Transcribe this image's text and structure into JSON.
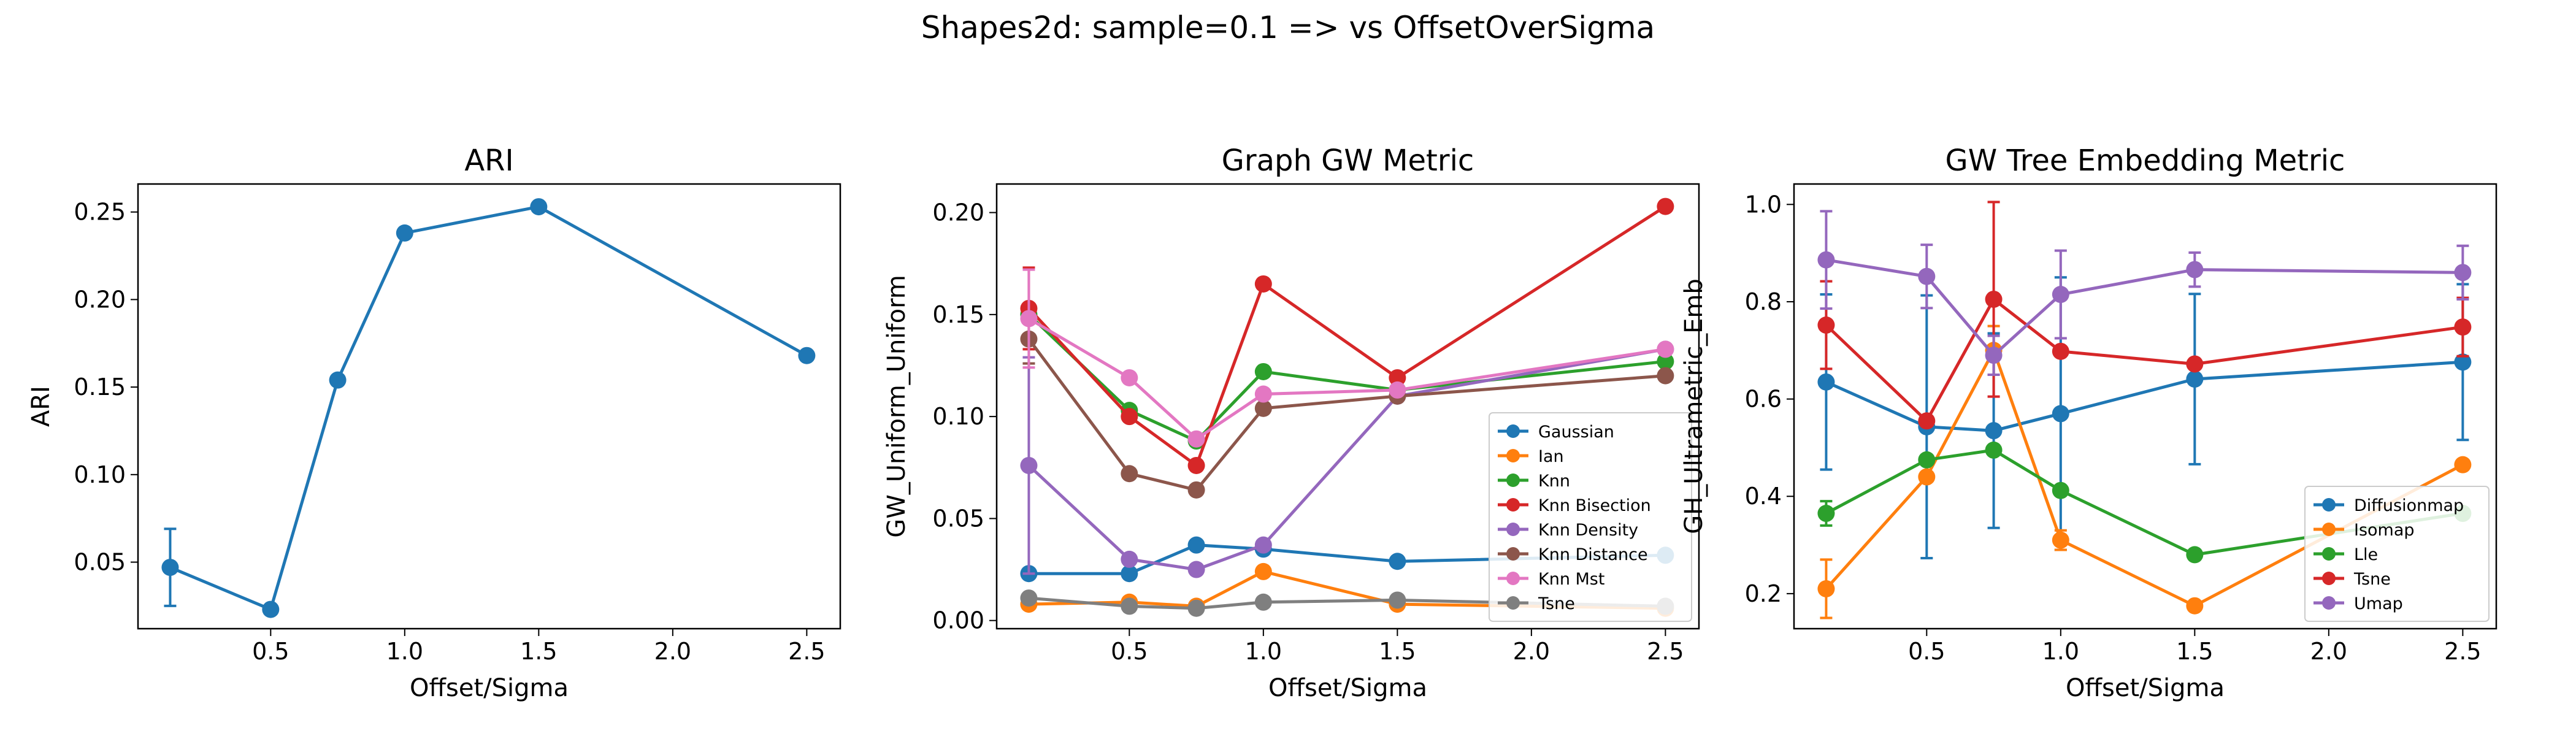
{
  "suptitle": "Shapes2d: sample=0.1 => vs OffsetOverSigma",
  "chart_data": [
    {
      "type": "line",
      "title": "ARI",
      "xlabel": "Offset/Sigma",
      "ylabel": "ARI",
      "xlim": [
        0.005,
        2.625
      ],
      "ylim": [
        0.012,
        0.266
      ],
      "xticks": [
        "0.5",
        "1.0",
        "1.5",
        "2.0",
        "2.5"
      ],
      "yticks": [
        "0.05",
        "0.10",
        "0.15",
        "0.20",
        "0.25"
      ],
      "x": [
        0.125,
        0.5,
        0.75,
        1.0,
        1.5,
        2.5
      ],
      "series": [
        {
          "name": "",
          "color": "#1f77b4",
          "values": [
            0.047,
            0.023,
            0.154,
            0.238,
            0.253,
            0.168
          ],
          "err": [
            0.022,
            0,
            0,
            0,
            0,
            0
          ]
        }
      ],
      "legend": null
    },
    {
      "type": "line",
      "title": "Graph GW Metric",
      "xlabel": "Offset/Sigma",
      "ylabel": "GW_Uniform_Uniform",
      "xlim": [
        0.005,
        2.625
      ],
      "ylim": [
        -0.004,
        0.214
      ],
      "xticks": [
        "0.5",
        "1.0",
        "1.5",
        "2.0",
        "2.5"
      ],
      "yticks": [
        "0.00",
        "0.05",
        "0.10",
        "0.15",
        "0.20"
      ],
      "x": [
        0.125,
        0.5,
        0.75,
        1.0,
        1.5,
        2.5
      ],
      "series": [
        {
          "name": "Gaussian",
          "color": "#1f77b4",
          "values": [
            0.023,
            0.023,
            0.037,
            0.035,
            0.029,
            0.032
          ],
          "err": [
            0,
            0,
            0,
            0,
            0,
            0
          ]
        },
        {
          "name": "Ian",
          "color": "#ff7f0e",
          "values": [
            0.008,
            0.009,
            0.007,
            0.024,
            0.008,
            0.006
          ],
          "err": [
            0,
            0,
            0,
            0,
            0,
            0
          ]
        },
        {
          "name": "Knn",
          "color": "#2ca02c",
          "values": [
            0.15,
            0.103,
            0.088,
            0.122,
            0.113,
            0.127
          ],
          "err": [
            0,
            0,
            0,
            0,
            0,
            0
          ]
        },
        {
          "name": "Knn Bisection",
          "color": "#d62728",
          "values": [
            0.153,
            0.1,
            0.076,
            0.165,
            0.119,
            0.203
          ],
          "err": [
            0.02,
            0,
            0,
            0,
            0,
            0
          ]
        },
        {
          "name": "Knn Density",
          "color": "#9467bd",
          "values": [
            0.076,
            0.03,
            0.025,
            0.037,
            0.11,
            0.133
          ],
          "err": [
            0.053,
            0,
            0,
            0,
            0,
            0
          ]
        },
        {
          "name": "Knn Distance",
          "color": "#8c564b",
          "values": [
            0.138,
            0.072,
            0.064,
            0.104,
            0.11,
            0.12
          ],
          "err": [
            0.012,
            0,
            0,
            0,
            0,
            0
          ]
        },
        {
          "name": "Knn Mst",
          "color": "#e377c2",
          "values": [
            0.148,
            0.119,
            0.089,
            0.111,
            0.113,
            0.133
          ],
          "err": [
            0.024,
            0,
            0,
            0,
            0,
            0
          ]
        },
        {
          "name": "Tsne",
          "color": "#7f7f7f",
          "values": [
            0.011,
            0.007,
            0.006,
            0.009,
            0.01,
            0.007
          ],
          "err": [
            0,
            0,
            0,
            0,
            0,
            0
          ]
        }
      ],
      "legend": "lower right"
    },
    {
      "type": "line",
      "title": "GW Tree Embedding Metric",
      "xlabel": "Offset/Sigma",
      "ylabel": "GH_Ultrametric_Emb",
      "xlim": [
        0.005,
        2.625
      ],
      "ylim": [
        0.128,
        1.042
      ],
      "xticks": [
        "0.5",
        "1.0",
        "1.5",
        "2.0",
        "2.5"
      ],
      "yticks": [
        "0.2",
        "0.4",
        "0.6",
        "0.8",
        "1.0"
      ],
      "x": [
        0.125,
        0.5,
        0.75,
        1.0,
        1.5,
        2.5
      ],
      "series": [
        {
          "name": "Diffusionmap",
          "color": "#1f77b4",
          "values": [
            0.635,
            0.543,
            0.535,
            0.57,
            0.641,
            0.676
          ],
          "err": [
            0.18,
            0.27,
            0.2,
            0.28,
            0.175,
            0.16
          ]
        },
        {
          "name": "Isomap",
          "color": "#ff7f0e",
          "values": [
            0.21,
            0.44,
            0.7,
            0.31,
            0.175,
            0.465
          ],
          "err": [
            0.06,
            0,
            0.05,
            0.02,
            0,
            0
          ]
        },
        {
          "name": "Lle",
          "color": "#2ca02c",
          "values": [
            0.365,
            0.475,
            0.495,
            0.412,
            0.28,
            0.365
          ],
          "err": [
            0.025,
            0,
            0,
            0,
            0,
            0
          ]
        },
        {
          "name": "Tsne",
          "color": "#d62728",
          "values": [
            0.752,
            0.555,
            0.805,
            0.698,
            0.672,
            0.748
          ],
          "err": [
            0.09,
            0,
            0.2,
            0,
            0,
            0.06
          ]
        },
        {
          "name": "Umap",
          "color": "#9467bd",
          "values": [
            0.886,
            0.852,
            0.69,
            0.815,
            0.866,
            0.86
          ],
          "err": [
            0.1,
            0.065,
            0.04,
            0.09,
            0.035,
            0.055
          ]
        }
      ],
      "legend": "lower right"
    }
  ]
}
